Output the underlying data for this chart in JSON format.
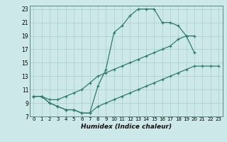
{
  "line1_x": [
    0,
    1,
    2,
    3,
    4,
    5,
    6,
    7,
    8,
    9,
    10,
    11,
    12,
    13,
    14,
    15,
    16,
    17,
    18,
    19,
    20
  ],
  "line1_y": [
    10,
    10,
    9,
    8.5,
    8,
    8,
    7.5,
    7.5,
    11.5,
    14,
    19.5,
    20.5,
    22,
    23,
    23,
    23,
    21,
    21,
    20.5,
    19,
    16.5
  ],
  "line2_x": [
    0,
    1,
    2,
    3,
    4,
    5,
    6,
    7,
    8,
    9,
    10,
    11,
    12,
    13,
    14,
    15,
    16,
    17,
    18,
    19,
    20
  ],
  "line2_y": [
    10,
    10,
    9.5,
    9.5,
    10,
    10.5,
    11,
    12,
    13,
    13.5,
    14,
    14.5,
    15,
    15.5,
    16,
    16.5,
    17,
    17.5,
    18.5,
    19,
    19
  ],
  "line3_x": [
    0,
    1,
    2,
    3,
    4,
    5,
    6,
    7,
    8,
    9,
    10,
    11,
    12,
    13,
    14,
    15,
    16,
    17,
    18,
    19,
    20,
    21,
    22,
    23
  ],
  "line3_y": [
    10,
    10,
    9,
    8.5,
    8,
    8,
    7.5,
    7.5,
    8.5,
    9,
    9.5,
    10,
    10.5,
    11,
    11.5,
    12,
    12.5,
    13,
    13.5,
    14,
    14.5,
    14.5,
    14.5,
    14.5
  ],
  "color": "#2e7d6e",
  "bg_color": "#cde8e8",
  "grid_color": "#aacece",
  "xlabel": "Humidex (Indice chaleur)",
  "xlim": [
    -0.5,
    23.5
  ],
  "ylim": [
    7,
    23.5
  ],
  "yticks": [
    7,
    9,
    11,
    13,
    15,
    17,
    19,
    21,
    23
  ],
  "xticks": [
    0,
    1,
    2,
    3,
    4,
    5,
    6,
    7,
    8,
    9,
    10,
    11,
    12,
    13,
    14,
    15,
    16,
    17,
    18,
    19,
    20,
    21,
    22,
    23
  ]
}
